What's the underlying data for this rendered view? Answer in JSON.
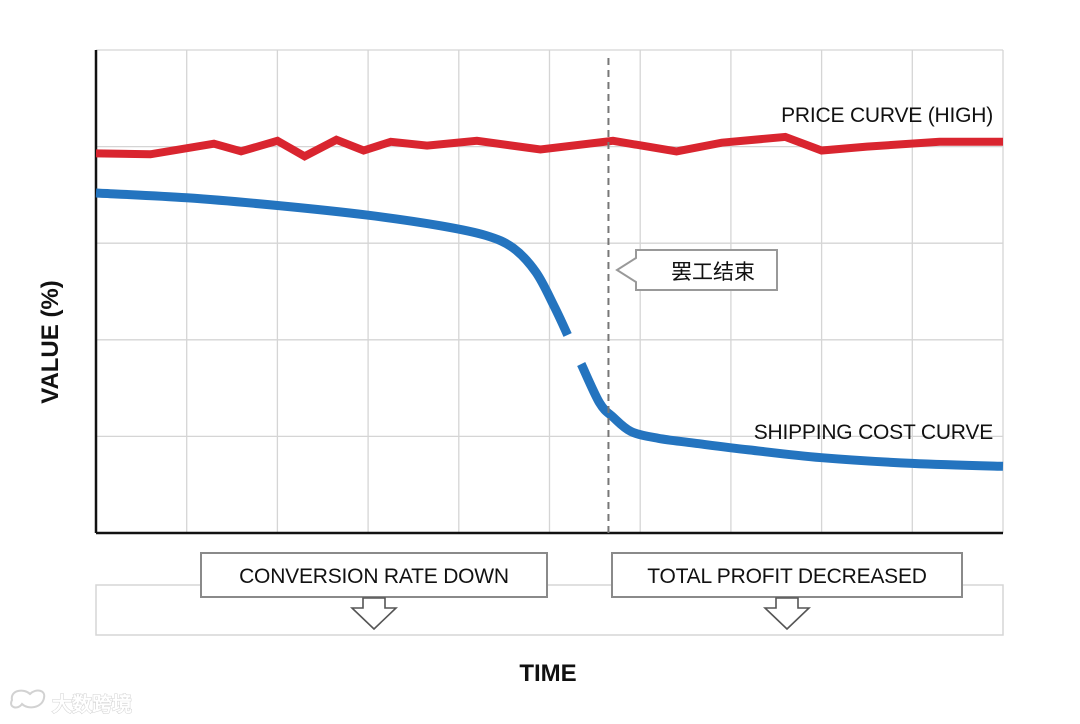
{
  "chart_data": {
    "type": "line",
    "xlabel": "TIME",
    "ylabel": "VALUE (%)",
    "x": [
      0,
      0.5,
      1,
      1.5,
      2,
      2.5,
      3,
      3.5,
      4,
      4.5,
      5,
      5.5,
      6,
      6.5,
      7,
      7.5,
      8,
      8.5,
      9,
      9.5,
      10
    ],
    "xlim": [
      0,
      10
    ],
    "ylim": [
      0,
      5
    ],
    "grid": true,
    "series": [
      {
        "name": "PRICE CURVE (HIGH)",
        "color": "#d9252f",
        "points": [
          [
            0,
            3.93
          ],
          [
            0.6,
            3.92
          ],
          [
            1.3,
            4.03
          ],
          [
            1.6,
            3.95
          ],
          [
            2.0,
            4.06
          ],
          [
            2.3,
            3.9
          ],
          [
            2.65,
            4.07
          ],
          [
            2.95,
            3.96
          ],
          [
            3.25,
            4.05
          ],
          [
            3.65,
            4.01
          ],
          [
            4.2,
            4.06
          ],
          [
            4.9,
            3.97
          ],
          [
            5.7,
            4.06
          ],
          [
            6.4,
            3.95
          ],
          [
            6.9,
            4.04
          ],
          [
            7.6,
            4.1
          ],
          [
            8.0,
            3.96
          ],
          [
            8.5,
            4.0
          ],
          [
            9.3,
            4.05
          ],
          [
            10,
            4.05
          ]
        ]
      },
      {
        "name": "SHIPPING COST CURVE",
        "color": "#2474bf",
        "points": [
          [
            0,
            3.52
          ],
          [
            1.0,
            3.47
          ],
          [
            2.0,
            3.39
          ],
          [
            3.0,
            3.29
          ],
          [
            3.8,
            3.18
          ],
          [
            4.3,
            3.08
          ],
          [
            4.6,
            2.95
          ],
          [
            4.85,
            2.7
          ],
          [
            5.05,
            2.35
          ],
          [
            5.2,
            2.05
          ],
          [
            5.35,
            1.75
          ],
          [
            5.55,
            1.35
          ],
          [
            5.7,
            1.2
          ],
          [
            5.9,
            1.05
          ],
          [
            6.2,
            0.98
          ],
          [
            6.6,
            0.93
          ],
          [
            7.2,
            0.86
          ],
          [
            8.0,
            0.78
          ],
          [
            9.0,
            0.72
          ],
          [
            10,
            0.69
          ]
        ],
        "gap_between_x": [
          5.2,
          5.35
        ]
      }
    ],
    "annotations": [
      {
        "text": "罢工结束",
        "type": "vertical-dashed-line",
        "x": 5.65
      },
      {
        "text": "CONVERSION RATE DOWN",
        "type": "callout-box",
        "position": "bottom-left"
      },
      {
        "text": "TOTAL PROFIT DECREASED",
        "type": "callout-box",
        "position": "bottom-right"
      }
    ],
    "watermark": "大数跨境"
  }
}
